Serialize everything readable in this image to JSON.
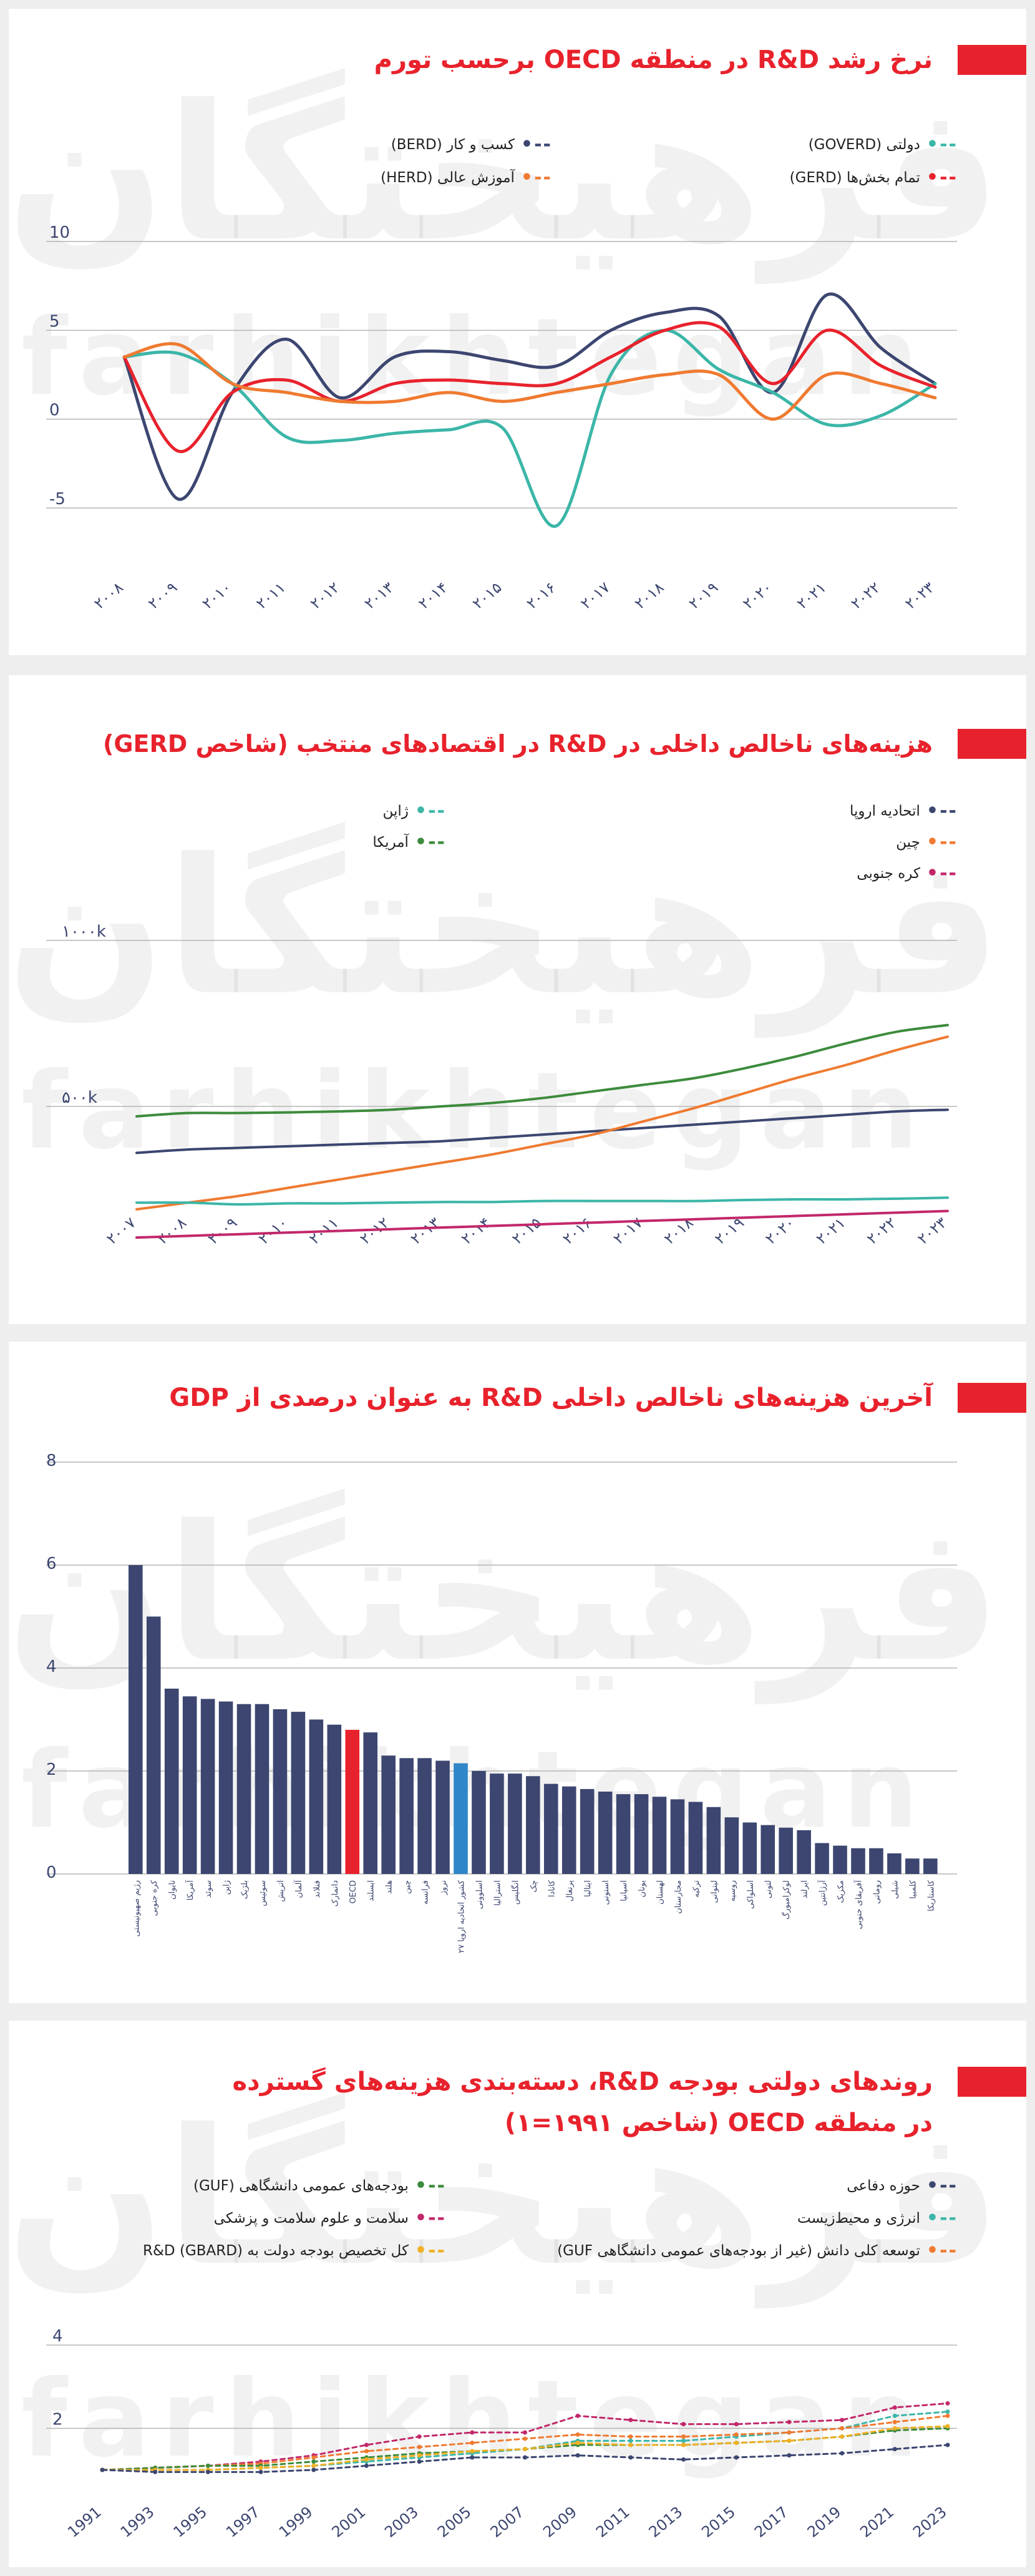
{
  "watermark": {
    "fa": "فرهیختگان",
    "en": "farhikhtegan"
  },
  "colors": {
    "accent": "#e8222c",
    "navy": "#3c4670",
    "teal": "#3bb6a8",
    "orange": "#ef7a30",
    "crimson": "#c9274b",
    "green": "#3d8b3d",
    "magenta": "#c2286a",
    "yellow": "#f0b024",
    "blue": "#2f86c8"
  },
  "panel1": {
    "title": "نرخ رشد R&D در منطقه OECD برحسب تورم",
    "legend": [
      {
        "label": "دولتی (GOVERD)",
        "color": "#3bb6a8"
      },
      {
        "label": "کسب و کار (BERD)",
        "color": "#3c4670"
      },
      {
        "label": "تمام بخش‌ها (GERD)",
        "color": "#e8222c"
      },
      {
        "label": "آموزش عالی (HERD)",
        "color": "#ef7a30"
      }
    ],
    "chart_data": {
      "type": "line",
      "x": [
        "۲۰۰۸",
        "۲۰۰۹",
        "۲۰۱۰",
        "۲۰۱۱",
        "۲۰۱۲",
        "۲۰۱۳",
        "۲۰۱۴",
        "۲۰۱۵",
        "۲۰۱۶",
        "۲۰۱۷",
        "۲۰۱۸",
        "۲۰۱۹",
        "۲۰۲۰",
        "۲۰۲۱",
        "۲۰۲۲",
        "۲۰۲۳"
      ],
      "yticks": [
        "10",
        "5",
        "0",
        "-5"
      ],
      "ylim": [
        -5,
        10
      ],
      "series": [
        {
          "name": "کسب و کار (BERD)",
          "color": "#3c4670",
          "values": [
            3.5,
            -4.5,
            1.5,
            4.5,
            1.2,
            3.5,
            3.8,
            3.3,
            3.0,
            5.0,
            6.0,
            5.8,
            1.5,
            7.0,
            4.0,
            2.0
          ]
        },
        {
          "name": "دولتی (GOVERD)",
          "color": "#3bb6a8",
          "values": [
            3.5,
            3.7,
            2.0,
            -1.0,
            -1.2,
            -0.8,
            -0.6,
            -0.5,
            -6.0,
            2.5,
            5.0,
            2.8,
            1.5,
            -0.3,
            0.2,
            2.0
          ]
        },
        {
          "name": "تمام بخش‌ها (GERD)",
          "color": "#e8222c",
          "values": [
            3.5,
            -1.8,
            1.5,
            2.2,
            1.0,
            2.0,
            2.2,
            2.0,
            2.0,
            3.5,
            5.0,
            5.2,
            2.0,
            5.0,
            3.0,
            1.8
          ]
        },
        {
          "name": "آموزش عالی (HERD)",
          "color": "#ef7a30",
          "values": [
            3.5,
            4.2,
            2.0,
            1.5,
            1.0,
            1.0,
            1.5,
            1.0,
            1.5,
            2.0,
            2.5,
            2.5,
            0.0,
            2.5,
            2.0,
            1.2
          ]
        }
      ]
    }
  },
  "panel2": {
    "title": "هزینه‌های ناخالص داخلی در R&D در اقتصادهای منتخب (شاخص GERD)",
    "legend": [
      {
        "label": "ژاپن",
        "color": "#3bb6a8"
      },
      {
        "label": "اتحادیه اروپا",
        "color": "#3c4670"
      },
      {
        "label": "آمریکا",
        "color": "#3d8b3d"
      },
      {
        "label": "چین",
        "color": "#ef7a30"
      },
      {
        "label": "کره جنوبی",
        "color": "#c2286a"
      }
    ],
    "chart_data": {
      "type": "line",
      "x": [
        "۲۰۰۷",
        "۲۰۰۸",
        "۲۰۰۹",
        "۲۰۱۰",
        "۲۰۱۱",
        "۲۰۱۲",
        "۲۰۱۳",
        "۲۰۱۴",
        "۲۰۱۵",
        "۲۰۱۶",
        "۲۰۱۷",
        "۲۰۱۸",
        "۲۰۱۹",
        "۲۰۲۰",
        "۲۰۲۱",
        "۲۰۲۲",
        "۲۰۲۳"
      ],
      "yticks": [
        "۱۰۰۰k",
        "۵۰۰k"
      ],
      "ylim": [
        0,
        1000
      ],
      "series": [
        {
          "name": "آمریکا",
          "color": "#3d8b3d",
          "values": [
            470,
            480,
            480,
            482,
            485,
            490,
            500,
            510,
            525,
            545,
            565,
            585,
            615,
            650,
            690,
            725,
            745
          ]
        },
        {
          "name": "اتحادیه اروپا",
          "color": "#3c4670",
          "values": [
            360,
            370,
            375,
            380,
            385,
            390,
            395,
            405,
            415,
            425,
            435,
            445,
            455,
            465,
            475,
            485,
            490
          ]
        },
        {
          "name": "چین",
          "color": "#ef7a30",
          "values": [
            190,
            210,
            230,
            255,
            280,
            305,
            330,
            355,
            385,
            415,
            455,
            495,
            540,
            585,
            625,
            670,
            710
          ]
        },
        {
          "name": "ژاپن",
          "color": "#3bb6a8",
          "values": [
            210,
            210,
            205,
            208,
            208,
            210,
            212,
            212,
            215,
            215,
            215,
            215,
            218,
            220,
            220,
            222,
            225
          ]
        },
        {
          "name": "کره جنوبی",
          "color": "#c2286a",
          "values": [
            105,
            110,
            115,
            120,
            125,
            130,
            135,
            140,
            145,
            150,
            155,
            160,
            165,
            170,
            175,
            180,
            185
          ]
        }
      ]
    }
  },
  "panel3": {
    "title": "آخرین هزینه‌های ناخالص داخلی R&D به عنوان درصدی از GDP",
    "chart_data": {
      "type": "bar",
      "yticks": [
        "8",
        "6",
        "4",
        "2",
        "0"
      ],
      "ylim": [
        0,
        8
      ],
      "categories": [
        "رژیم صهیونیستی",
        "کره جنوبی",
        "تایوان",
        "آمریکا",
        "سوئد",
        "ژاپن",
        "بلژیک",
        "سوئیس",
        "اتریش",
        "آلمان",
        "فنلاند",
        "دانمارک",
        "OECD",
        "ایسلند",
        "هلند",
        "چین",
        "فرانسه",
        "نروژ",
        "۲۷ کشور اتحادیه اروپا",
        "اسلوونی",
        "استرالیا",
        "انگلیس",
        "چک",
        "کانادا",
        "پرتغال",
        "ایتالیا",
        "استونی",
        "اسپانیا",
        "یونان",
        "لهستان",
        "مجارستان",
        "ترکیه",
        "لیتوانی",
        "روسیه",
        "اسلواکی",
        "لتونی",
        "لوکزامبورگ",
        "ایرلند",
        "آرژانتین",
        "مکزیک",
        "آفریقای جنوبی",
        "رومانی",
        "شیلی",
        "کلمبیا",
        "کاستاریکا"
      ],
      "values": [
        6.0,
        5.0,
        3.6,
        3.45,
        3.4,
        3.35,
        3.3,
        3.3,
        3.2,
        3.15,
        3.0,
        2.9,
        2.8,
        2.75,
        2.3,
        2.25,
        2.25,
        2.2,
        2.15,
        2.0,
        1.95,
        1.95,
        1.9,
        1.75,
        1.7,
        1.65,
        1.6,
        1.55,
        1.55,
        1.5,
        1.45,
        1.4,
        1.3,
        1.1,
        1.0,
        0.95,
        0.9,
        0.85,
        0.6,
        0.55,
        0.5,
        0.5,
        0.4,
        0.3,
        0.3
      ],
      "highlight": {
        "OECD": "#e8222c",
        "۲۷ کشور اتحادیه اروپا": "#2f86c8"
      },
      "bar_color": "#3c4670"
    }
  },
  "panel4": {
    "title_line1": "روندهای دولتی بودجه R&D، دسته‌بندی هزینه‌های گسترده",
    "title_line2": "در منطقه OECD (شاخص ۱۹۹۱=۱)",
    "legend": [
      {
        "label": "حوزه دفاعی",
        "color": "#3c4670"
      },
      {
        "label": "بودجه‌های عمومی دانشگاهی (GUF)",
        "color": "#3d8b3d"
      },
      {
        "label": "انرژی و محیط‌زیست",
        "color": "#3bb6a8"
      },
      {
        "label": "سلامت و علوم سلامت و پزشکی",
        "color": "#c2286a"
      },
      {
        "label": "توسعه کلی دانش (غیر از بودجه‌های عمومی دانشگاهی GUF)",
        "color": "#ef7a30"
      },
      {
        "label": "کل تخصیص بودجه دولت به R&D (GBARD)",
        "color": "#f0b024"
      }
    ],
    "chart_data": {
      "type": "line",
      "x": [
        "1991",
        "1993",
        "1995",
        "1997",
        "1999",
        "2001",
        "2003",
        "2005",
        "2007",
        "2009",
        "2011",
        "2013",
        "2015",
        "2017",
        "2019",
        "2021",
        "2023"
      ],
      "yticks": [
        "4",
        "2"
      ],
      "ylim": [
        1,
        4
      ],
      "series": [
        {
          "name": "سلامت و علوم سلامت و پزشکی",
          "color": "#c2286a",
          "values": [
            1.0,
            1.05,
            1.1,
            1.2,
            1.35,
            1.6,
            1.8,
            1.9,
            1.9,
            2.3,
            2.2,
            2.1,
            2.1,
            2.15,
            2.2,
            2.5,
            2.6
          ]
        },
        {
          "name": "انرژی و محیط‌زیست",
          "color": "#3bb6a8",
          "values": [
            1.0,
            1.0,
            1.0,
            1.05,
            1.1,
            1.2,
            1.3,
            1.4,
            1.5,
            1.7,
            1.7,
            1.7,
            1.8,
            1.9,
            2.0,
            2.3,
            2.4
          ]
        },
        {
          "name": "توسعه کلی دانش (غیر از بودجه‌های عمومی دانشگاهی GUF)",
          "color": "#ef7a30",
          "values": [
            1.0,
            1.05,
            1.1,
            1.15,
            1.3,
            1.45,
            1.55,
            1.65,
            1.75,
            1.85,
            1.8,
            1.8,
            1.85,
            1.9,
            2.0,
            2.15,
            2.3
          ]
        },
        {
          "name": "بودجه‌های عمومی دانشگاهی (GUF)",
          "color": "#3d8b3d",
          "values": [
            1.0,
            1.05,
            1.1,
            1.1,
            1.2,
            1.3,
            1.4,
            1.45,
            1.5,
            1.6,
            1.6,
            1.6,
            1.65,
            1.7,
            1.8,
            1.95,
            2.0
          ]
        },
        {
          "name": "کل تخصیص بودجه دولت به R&D (GBARD)",
          "color": "#f0b024",
          "values": [
            1.0,
            1.0,
            1.0,
            1.05,
            1.1,
            1.25,
            1.35,
            1.45,
            1.5,
            1.65,
            1.6,
            1.6,
            1.65,
            1.7,
            1.8,
            2.0,
            2.05
          ]
        },
        {
          "name": "حوزه دفاعی",
          "color": "#3c4670",
          "values": [
            1.0,
            0.95,
            0.95,
            0.95,
            1.0,
            1.1,
            1.2,
            1.3,
            1.3,
            1.35,
            1.3,
            1.25,
            1.3,
            1.35,
            1.4,
            1.5,
            1.6
          ]
        }
      ]
    }
  }
}
